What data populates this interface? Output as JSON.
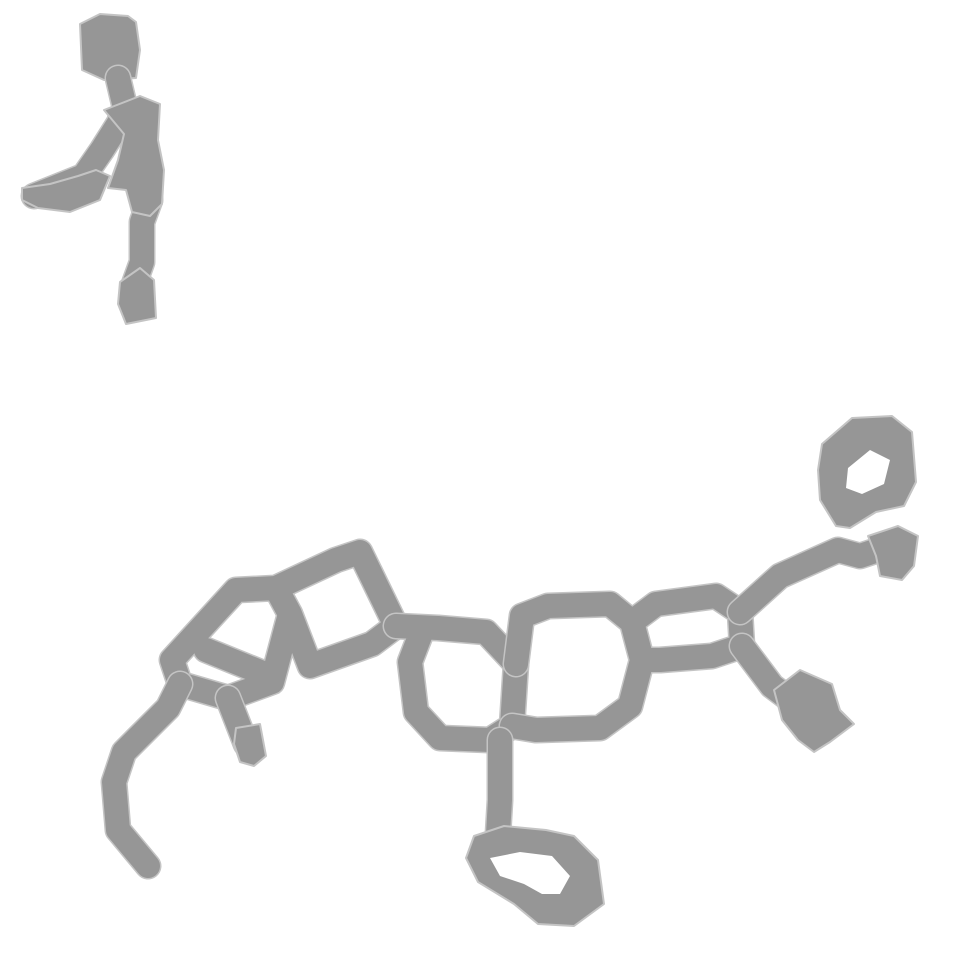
{
  "image": {
    "background_color": "#ffffff",
    "shape_color": "#969696",
    "shape_edge_color": "#c4c4c4"
  }
}
